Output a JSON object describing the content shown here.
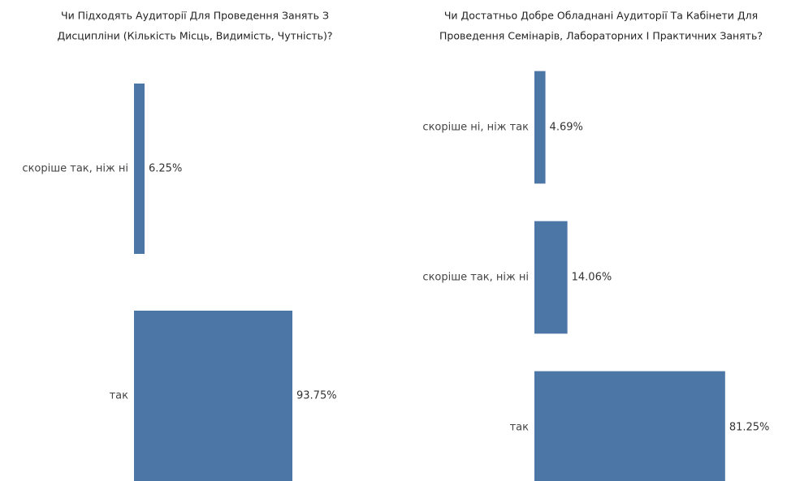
{
  "chart_data": [
    {
      "type": "bar",
      "title": [
        "Чи Підходять Аудиторії Для Проведення Занять З",
        "Дисципліни (Кількість Місць, Видимість, Чутність)?"
      ],
      "categories": [
        "скоріше так, ніж ні",
        "так"
      ],
      "values": [
        6.25,
        93.75
      ],
      "value_labels": [
        "6.25%",
        "93.75%"
      ],
      "color": "#4c76a6",
      "xlim": [
        0,
        100
      ]
    },
    {
      "type": "bar",
      "title": [
        "Чи Достатньо Добре Обладнані Аудиторії Та Кабінети Для",
        "Проведення Семінарів, Лабораторних І Практичних Занять?"
      ],
      "categories": [
        "скоріше ні, ніж так",
        "скоріше так, ніж ні",
        "так"
      ],
      "values": [
        4.69,
        14.06,
        81.25
      ],
      "value_labels": [
        "4.69%",
        "14.06%",
        "81.25%"
      ],
      "color": "#4c76a6",
      "xlim": [
        0,
        100
      ]
    }
  ]
}
